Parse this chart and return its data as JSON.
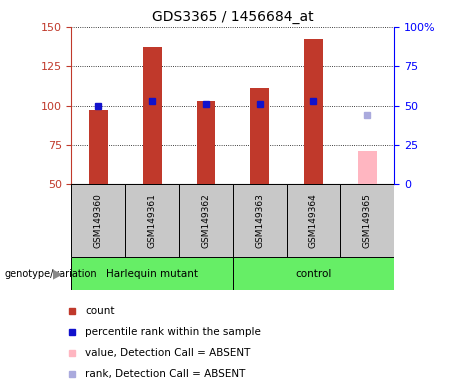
{
  "title": "GDS3365 / 1456684_at",
  "samples": [
    "GSM149360",
    "GSM149361",
    "GSM149362",
    "GSM149363",
    "GSM149364",
    "GSM149365"
  ],
  "count_values": [
    97,
    137,
    103,
    111,
    142,
    null
  ],
  "count_absent": [
    null,
    null,
    null,
    null,
    null,
    71
  ],
  "rank_values": [
    50,
    53,
    51,
    51,
    53,
    null
  ],
  "rank_absent": [
    null,
    null,
    null,
    null,
    null,
    44
  ],
  "ylim_left": [
    50,
    150
  ],
  "ylim_right": [
    0,
    100
  ],
  "yticks_left": [
    50,
    75,
    100,
    125,
    150
  ],
  "yticks_right": [
    0,
    25,
    50,
    75,
    100
  ],
  "bar_color_red": "#C0392B",
  "bar_color_pink": "#FFB6C1",
  "dot_color_blue": "#1111CC",
  "dot_color_lightblue": "#AAAADD",
  "bg_gray": "#C8C8C8",
  "green_color": "#66EE66",
  "harlequin_span": [
    0,
    2
  ],
  "control_span": [
    3,
    5
  ],
  "legend_items": [
    {
      "label": "count",
      "color": "#C0392B"
    },
    {
      "label": "percentile rank within the sample",
      "color": "#1111CC"
    },
    {
      "label": "value, Detection Call = ABSENT",
      "color": "#FFB6C1"
    },
    {
      "label": "rank, Detection Call = ABSENT",
      "color": "#AAAADD"
    }
  ]
}
